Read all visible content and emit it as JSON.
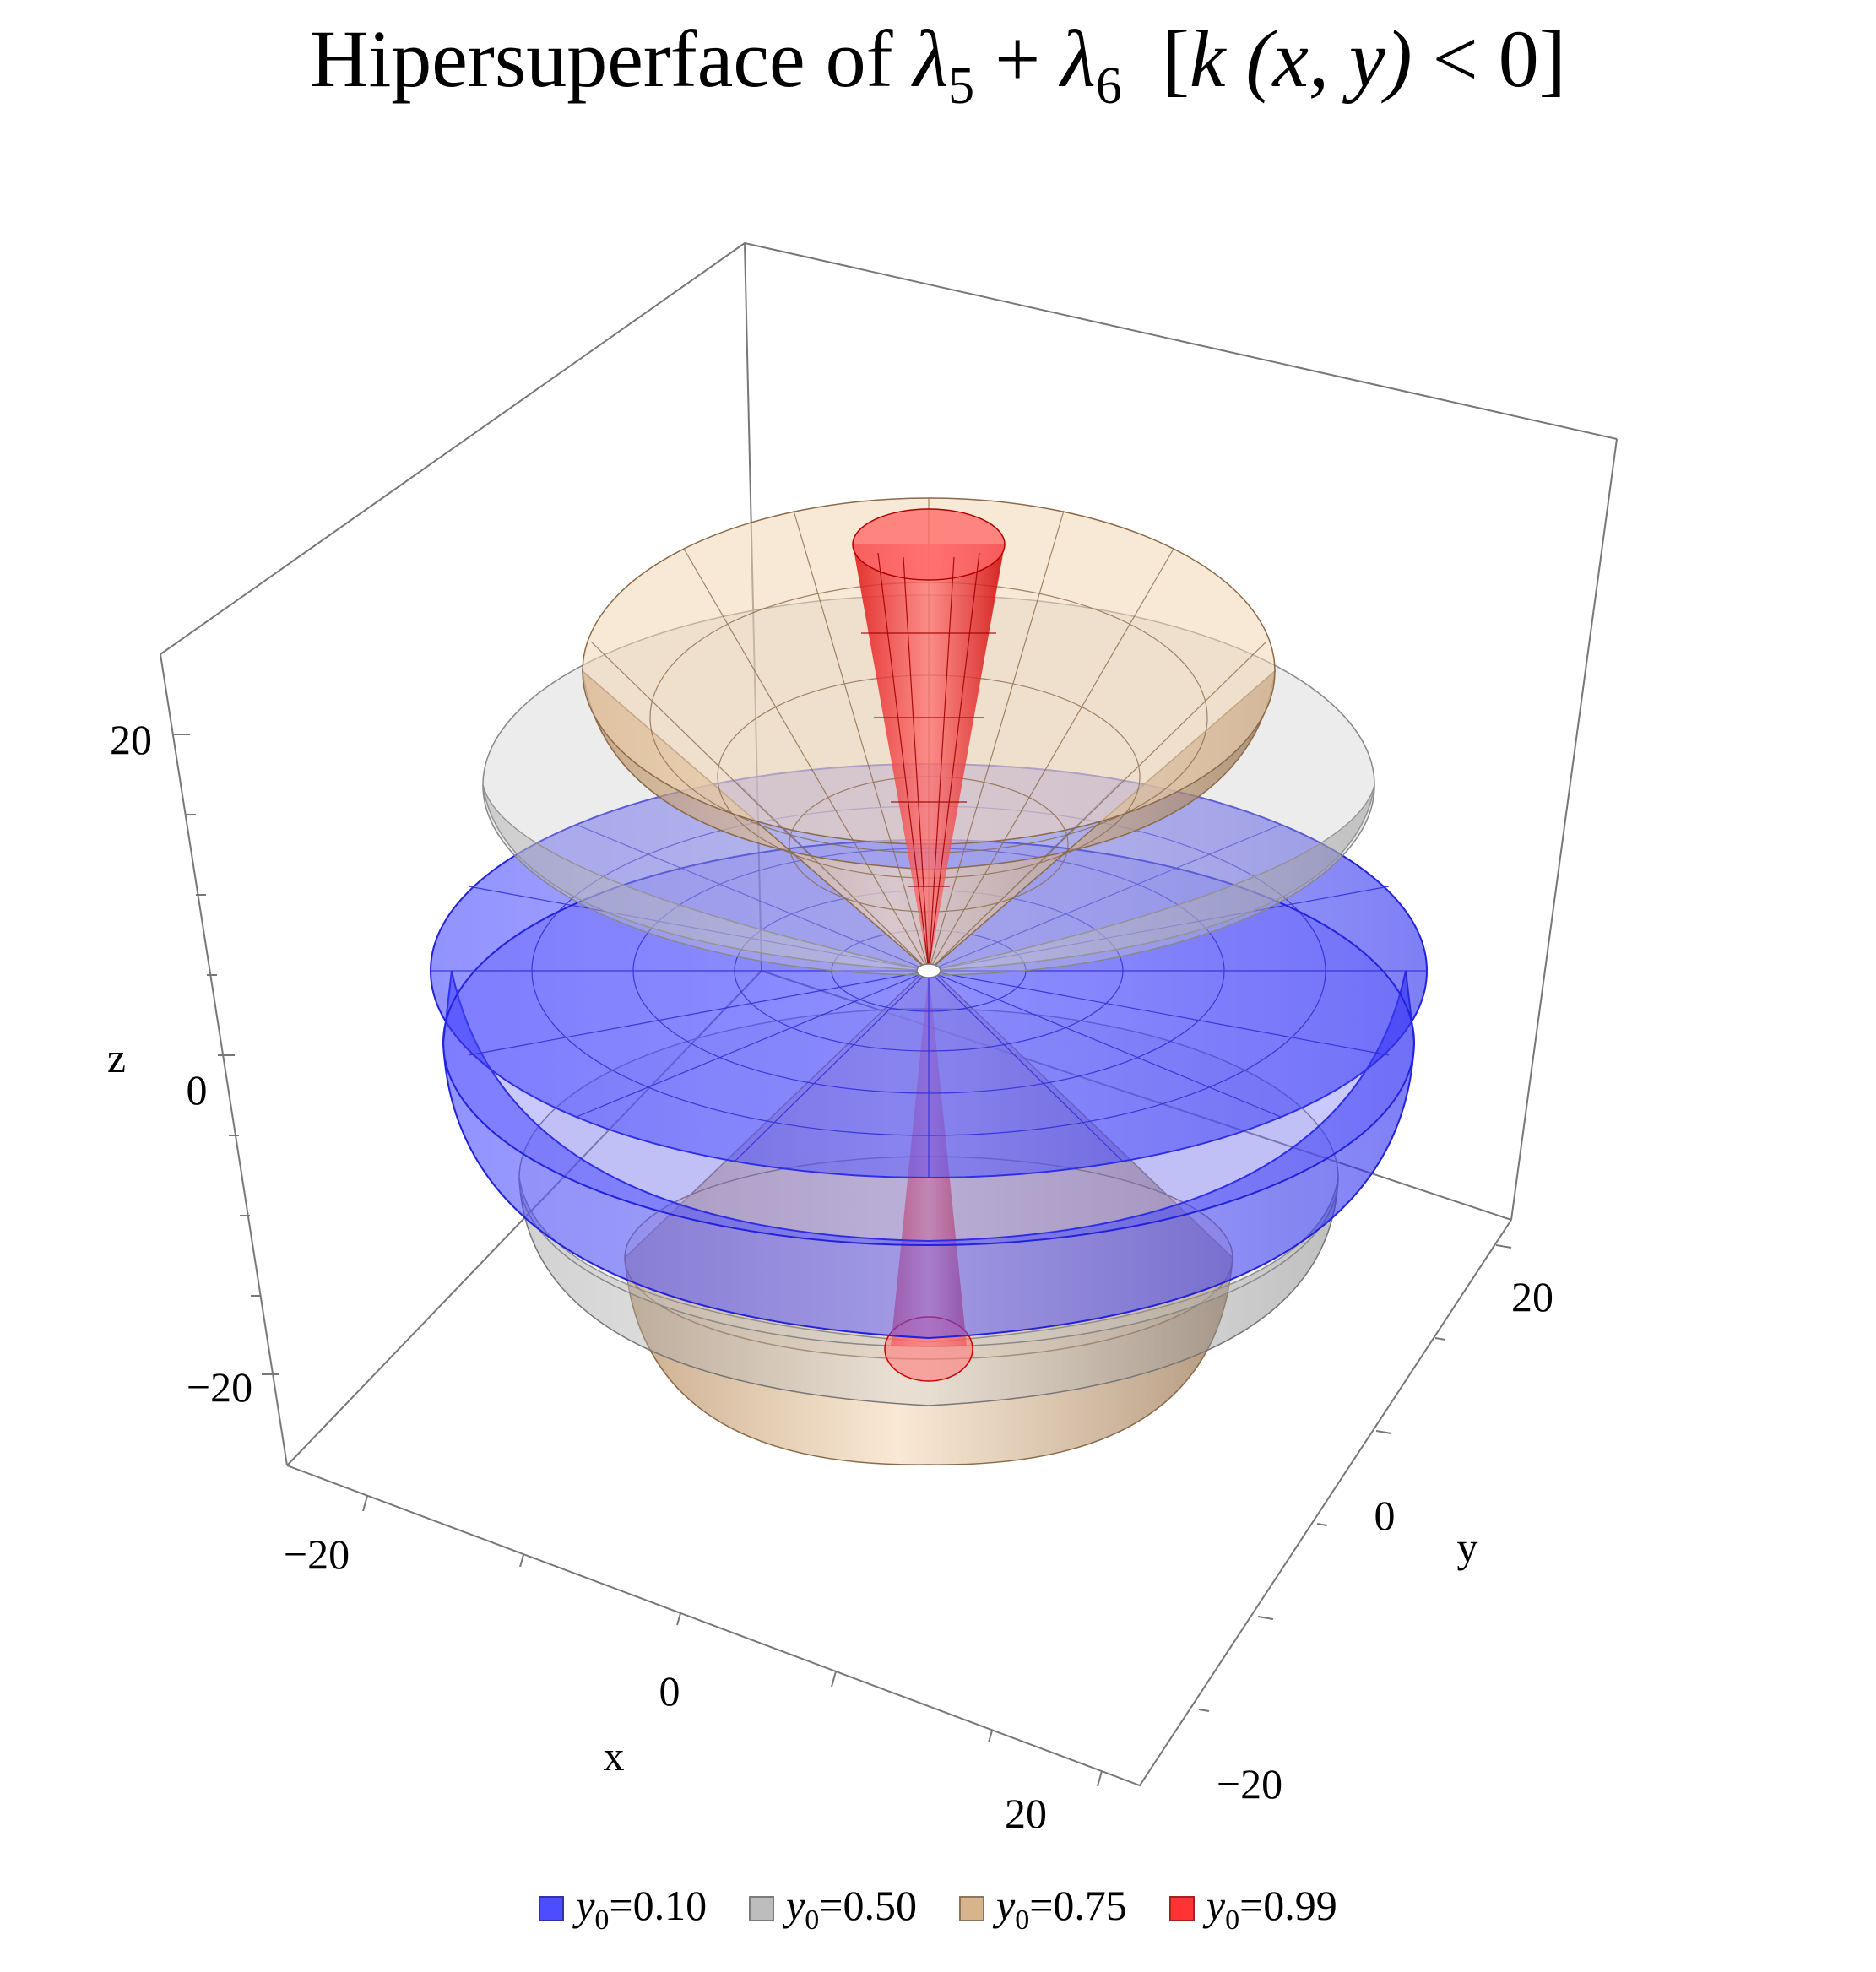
{
  "title": {
    "prefix": "Hipersuperface of ",
    "expr_a": "λ",
    "sub_a": "5",
    "plus": " + ",
    "expr_b": "λ",
    "sub_b": "6",
    "bracket_open": "  [",
    "k": "k",
    "args": " (x, y)",
    "condition": " < 0]"
  },
  "chart_data": {
    "type": "surface3d",
    "xlabel": "x",
    "ylabel": "y",
    "zlabel": "z",
    "xlim": [
      -25,
      25
    ],
    "ylim": [
      -25,
      25
    ],
    "zlim": [
      -25,
      25
    ],
    "x_ticks": [
      "−20",
      "0",
      "20"
    ],
    "y_ticks": [
      "20",
      "0",
      "−20"
    ],
    "z_ticks": [
      "20",
      "0",
      "−20"
    ],
    "series": [
      {
        "name": "y0=0.10",
        "label_var": "y",
        "label_sub": "0",
        "label_val": "=0.10",
        "y0": 0.1,
        "color": "#4d4dff"
      },
      {
        "name": "y0=0.50",
        "label_var": "y",
        "label_sub": "0",
        "label_val": "=0.50",
        "y0": 0.5,
        "color": "#bdbdbd"
      },
      {
        "name": "y0=0.75",
        "label_var": "y",
        "label_sub": "0",
        "label_val": "=0.75",
        "y0": 0.75,
        "color": "#d8b48c"
      },
      {
        "name": "y0=0.99",
        "label_var": "y",
        "label_sub": "0",
        "label_val": "=0.99",
        "y0": 0.99,
        "color": "#ff3333"
      }
    ],
    "legend": "bottom",
    "grid": false
  }
}
